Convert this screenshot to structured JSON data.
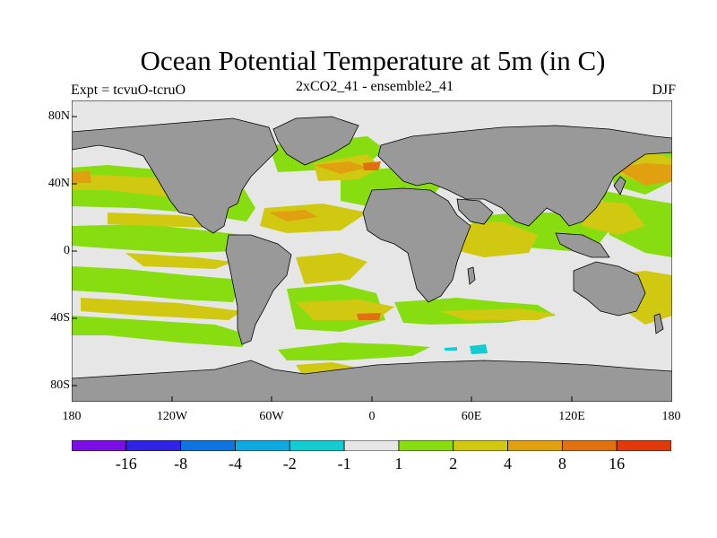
{
  "title": "Ocean Potential Temperature at 5m (in C)",
  "subtitle_left": "Expt = tcvuO-tcruO",
  "subtitle_center": "2xCO2_41 - ensemble2_41",
  "subtitle_right": "DJF",
  "lat_labels": [
    "80N",
    "40N",
    "0",
    "40S",
    "80S"
  ],
  "lon_labels": [
    "180",
    "120W",
    "60W",
    "0",
    "60E",
    "120E",
    "180"
  ],
  "colorbar": {
    "colors": [
      "#7b0ee6",
      "#2f23e6",
      "#0f73e0",
      "#10a8e0",
      "#11ccd0",
      "#e6e6e6",
      "#88dd11",
      "#d0c811",
      "#e0a010",
      "#e07010",
      "#e03a0c"
    ],
    "labels": [
      "-16",
      "-8",
      "-4",
      "-2",
      "-1",
      "1",
      "2",
      "4",
      "8",
      "16"
    ]
  },
  "colors": {
    "land": "#999999",
    "no_change": "#e6e6e6",
    "band_1_2": "#88dd11",
    "band_2_4": "#d0c811",
    "band_4_8": "#e0a010",
    "band_8_16": "#e07010",
    "band_neg": "#11ccd0"
  }
}
